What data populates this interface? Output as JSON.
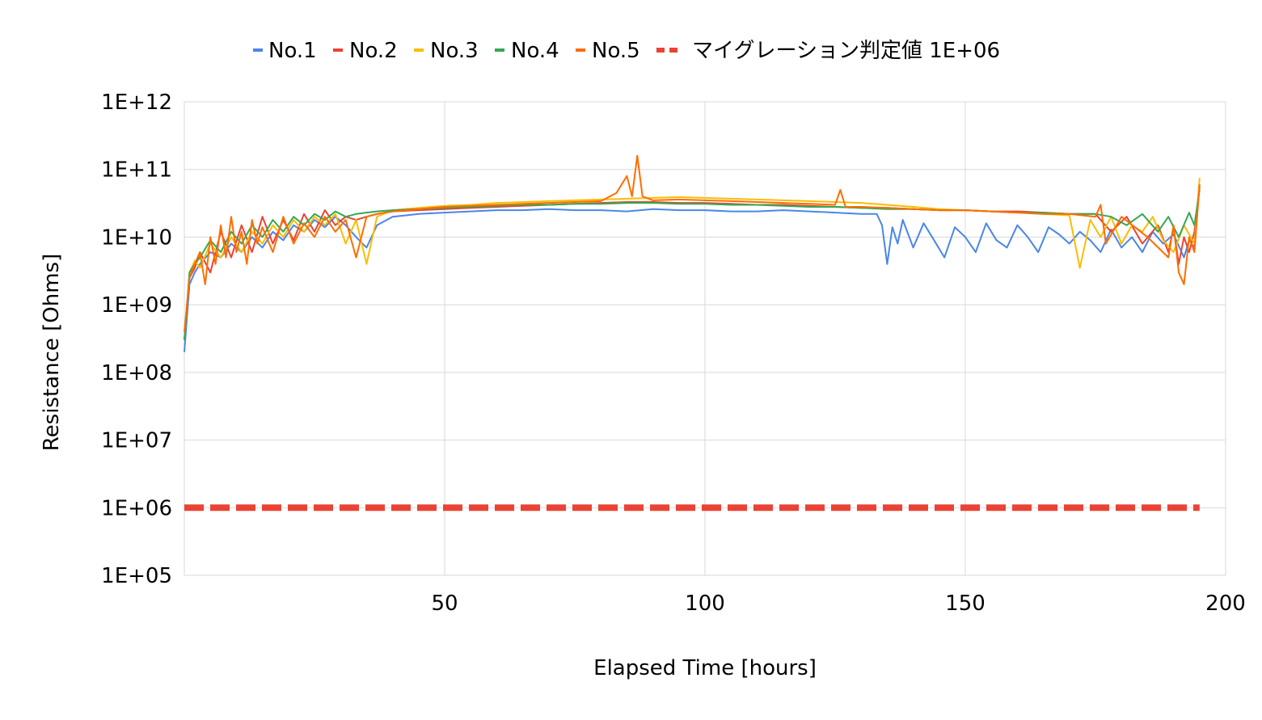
{
  "chart_data": {
    "type": "line",
    "xlabel": "Elapsed Time [hours]",
    "ylabel": "Resistance [Ohms]",
    "xlim": [
      0,
      200
    ],
    "ylim": [
      100000,
      1000000000000
    ],
    "y_scale": "log",
    "x_ticks": [
      {
        "value": 50,
        "label": "50"
      },
      {
        "value": 100,
        "label": "100"
      },
      {
        "value": 150,
        "label": "150"
      },
      {
        "value": 200,
        "label": "200"
      }
    ],
    "y_ticks": [
      {
        "value": 1000000000000,
        "label": "1E+12"
      },
      {
        "value": 100000000000,
        "label": "1E+11"
      },
      {
        "value": 10000000000,
        "label": "1E+10"
      },
      {
        "value": 1000000000,
        "label": "1E+09"
      },
      {
        "value": 100000000,
        "label": "1E+08"
      },
      {
        "value": 10000000,
        "label": "1E+07"
      },
      {
        "value": 1000000,
        "label": "1E+06"
      },
      {
        "value": 100000,
        "label": "1E+05"
      }
    ],
    "grid": true,
    "legend_position": "top",
    "series": [
      {
        "name": "No.1",
        "color": "#4a86e8",
        "dash": false,
        "x": [
          0,
          1,
          2,
          3,
          5,
          7,
          9,
          11,
          13,
          15,
          17,
          19,
          21,
          23,
          25,
          27,
          29,
          31,
          33,
          35,
          37,
          40,
          45,
          50,
          55,
          60,
          65,
          70,
          75,
          80,
          85,
          90,
          95,
          100,
          105,
          110,
          115,
          120,
          125,
          130,
          133,
          134,
          135,
          136,
          137,
          138,
          140,
          142,
          144,
          146,
          148,
          150,
          152,
          154,
          156,
          158,
          160,
          162,
          164,
          166,
          168,
          170,
          172,
          174,
          176,
          178,
          180,
          182,
          184,
          186,
          188,
          190,
          192,
          193,
          194,
          195
        ],
        "values": [
          200000000,
          2000000000,
          3000000000,
          4000000000,
          6000000000,
          5000000000,
          8000000000,
          6000000000,
          10000000000,
          7000000000,
          12000000000,
          9000000000,
          15000000000,
          12000000000,
          18000000000,
          14000000000,
          20000000000,
          15000000000,
          10000000000,
          7000000000,
          15000000000,
          20000000000,
          22000000000,
          23000000000,
          24000000000,
          25000000000,
          25000000000,
          26000000000,
          25000000000,
          25000000000,
          24000000000,
          26000000000,
          25000000000,
          25000000000,
          24000000000,
          24000000000,
          25000000000,
          24000000000,
          23000000000,
          22000000000,
          22000000000,
          15000000000,
          4000000000,
          14000000000,
          8000000000,
          18000000000,
          7000000000,
          16000000000,
          9000000000,
          5000000000,
          14000000000,
          10000000000,
          6000000000,
          16000000000,
          9000000000,
          7000000000,
          15000000000,
          10000000000,
          6000000000,
          14000000000,
          11000000000,
          8000000000,
          12000000000,
          9000000000,
          6000000000,
          13000000000,
          7000000000,
          10000000000,
          6000000000,
          12000000000,
          8000000000,
          11000000000,
          5000000000,
          9000000000,
          7000000000,
          60000000000
        ]
      },
      {
        "name": "No.2",
        "color": "#ea4335",
        "dash": false,
        "x": [
          0,
          1,
          2,
          3,
          5,
          7,
          9,
          11,
          13,
          15,
          17,
          19,
          21,
          23,
          25,
          27,
          29,
          31,
          33,
          35,
          37,
          40,
          45,
          50,
          55,
          60,
          65,
          70,
          75,
          80,
          85,
          90,
          95,
          100,
          105,
          110,
          115,
          120,
          125,
          130,
          135,
          140,
          145,
          150,
          155,
          160,
          165,
          170,
          175,
          178,
          181,
          184,
          187,
          189,
          190,
          191,
          192,
          193,
          194,
          195
        ],
        "values": [
          300000000,
          2500000000,
          3500000000,
          6000000000,
          3000000000,
          12000000000,
          5000000000,
          15000000000,
          6000000000,
          20000000000,
          8000000000,
          18000000000,
          9000000000,
          22000000000,
          12000000000,
          25000000000,
          15000000000,
          20000000000,
          18000000000,
          20000000000,
          22000000000,
          24000000000,
          25000000000,
          26000000000,
          27000000000,
          28000000000,
          29000000000,
          30000000000,
          31000000000,
          32000000000,
          33000000000,
          33000000000,
          32000000000,
          32000000000,
          31000000000,
          30000000000,
          30000000000,
          29000000000,
          28000000000,
          27000000000,
          27000000000,
          26000000000,
          25000000000,
          25000000000,
          24000000000,
          24000000000,
          23000000000,
          22000000000,
          22000000000,
          12000000000,
          20000000000,
          8000000000,
          15000000000,
          6000000000,
          14000000000,
          4000000000,
          10000000000,
          6000000000,
          12000000000,
          55000000000
        ]
      },
      {
        "name": "No.3",
        "color": "#fbbc04",
        "dash": false,
        "x": [
          0,
          1,
          2,
          3,
          5,
          7,
          9,
          11,
          13,
          15,
          17,
          19,
          21,
          23,
          25,
          27,
          29,
          31,
          33,
          35,
          37,
          40,
          45,
          50,
          55,
          60,
          65,
          70,
          75,
          80,
          85,
          90,
          95,
          100,
          105,
          110,
          115,
          120,
          125,
          130,
          135,
          140,
          145,
          150,
          155,
          160,
          165,
          170,
          172,
          174,
          176,
          178,
          180,
          182,
          184,
          186,
          188,
          190,
          192,
          194,
          195
        ],
        "values": [
          300000000,
          3000000000,
          4500000000,
          3500000000,
          8000000000,
          5000000000,
          10000000000,
          6000000000,
          12000000000,
          8000000000,
          15000000000,
          10000000000,
          18000000000,
          12000000000,
          20000000000,
          15000000000,
          22000000000,
          8000000000,
          18000000000,
          4000000000,
          20000000000,
          25000000000,
          27000000000,
          29000000000,
          30000000000,
          32000000000,
          33000000000,
          34000000000,
          35000000000,
          36000000000,
          37000000000,
          38000000000,
          39000000000,
          38000000000,
          37000000000,
          36000000000,
          35000000000,
          34000000000,
          33000000000,
          32000000000,
          30000000000,
          28000000000,
          26000000000,
          25000000000,
          24000000000,
          23000000000,
          22000000000,
          21000000000,
          3500000000,
          18000000000,
          10000000000,
          20000000000,
          8000000000,
          15000000000,
          12000000000,
          20000000000,
          9000000000,
          6000000000,
          15000000000,
          8000000000,
          75000000000
        ]
      },
      {
        "name": "No.4",
        "color": "#34a853",
        "dash": false,
        "x": [
          0,
          1,
          2,
          3,
          5,
          7,
          9,
          11,
          13,
          15,
          17,
          19,
          21,
          23,
          25,
          27,
          29,
          31,
          33,
          35,
          37,
          40,
          45,
          50,
          55,
          60,
          65,
          70,
          75,
          80,
          85,
          90,
          95,
          100,
          105,
          110,
          115,
          120,
          125,
          130,
          135,
          140,
          145,
          150,
          155,
          160,
          165,
          170,
          175,
          178,
          181,
          184,
          187,
          189,
          191,
          193,
          194,
          195
        ],
        "values": [
          300000000,
          3000000000,
          4000000000,
          5000000000,
          9000000000,
          6000000000,
          12000000000,
          8000000000,
          15000000000,
          10000000000,
          18000000000,
          12000000000,
          20000000000,
          15000000000,
          22000000000,
          18000000000,
          24000000000,
          20000000000,
          22000000000,
          23000000000,
          24000000000,
          25000000000,
          26000000000,
          27000000000,
          28000000000,
          29000000000,
          30000000000,
          30000000000,
          31000000000,
          31000000000,
          32000000000,
          32000000000,
          31000000000,
          31000000000,
          30000000000,
          30000000000,
          29000000000,
          28000000000,
          28000000000,
          27000000000,
          26000000000,
          26000000000,
          25000000000,
          25000000000,
          24000000000,
          23000000000,
          23000000000,
          22000000000,
          22000000000,
          20000000000,
          15000000000,
          22000000000,
          12000000000,
          20000000000,
          10000000000,
          23000000000,
          15000000000,
          50000000000
        ]
      },
      {
        "name": "No.5",
        "color": "#ff6d01",
        "dash": false,
        "x": [
          0,
          1,
          2,
          3,
          4,
          5,
          6,
          7,
          8,
          9,
          10,
          11,
          12,
          13,
          14,
          15,
          17,
          19,
          21,
          23,
          25,
          27,
          29,
          31,
          33,
          35,
          37,
          40,
          45,
          50,
          55,
          60,
          65,
          70,
          75,
          80,
          83,
          85,
          86,
          87,
          88,
          90,
          95,
          100,
          105,
          110,
          115,
          120,
          125,
          126,
          127,
          130,
          135,
          140,
          145,
          150,
          155,
          160,
          165,
          170,
          175,
          176,
          177,
          180,
          185,
          189,
          190,
          191,
          192,
          193,
          194,
          195
        ],
        "values": [
          400000000,
          2500000000,
          4000000000,
          6000000000,
          2000000000,
          10000000000,
          4000000000,
          15000000000,
          5000000000,
          20000000000,
          6000000000,
          12000000000,
          4000000000,
          18000000000,
          8000000000,
          14000000000,
          6000000000,
          20000000000,
          8000000000,
          16000000000,
          10000000000,
          20000000000,
          12000000000,
          18000000000,
          5000000000,
          20000000000,
          22000000000,
          24000000000,
          26000000000,
          28000000000,
          29000000000,
          30000000000,
          31000000000,
          32000000000,
          33000000000,
          34000000000,
          45000000000,
          80000000000,
          40000000000,
          160000000000,
          40000000000,
          35000000000,
          36000000000,
          35000000000,
          34000000000,
          33000000000,
          32000000000,
          31000000000,
          30000000000,
          50000000000,
          28000000000,
          28000000000,
          27000000000,
          26000000000,
          25000000000,
          25000000000,
          24000000000,
          23000000000,
          22000000000,
          22000000000,
          20000000000,
          30000000000,
          8000000000,
          20000000000,
          10000000000,
          5000000000,
          15000000000,
          3000000000,
          2000000000,
          10000000000,
          6000000000,
          60000000000
        ]
      },
      {
        "name": "マイグレーション判定値 1E+06",
        "color": "#ea4335",
        "dash": true,
        "x": [
          0,
          195
        ],
        "values": [
          1000000,
          1000000
        ]
      }
    ]
  }
}
